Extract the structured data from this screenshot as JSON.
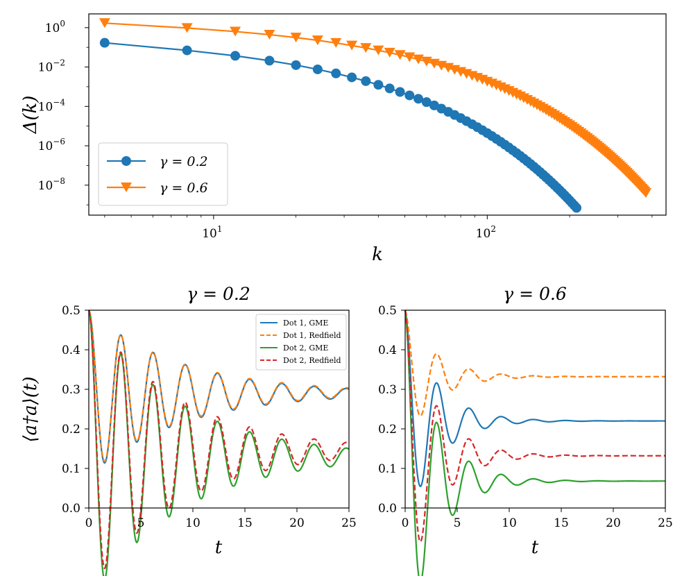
{
  "colors": {
    "blue": "#1f77b4",
    "orange": "#ff7f0e",
    "green": "#2ca02c",
    "red": "#d62728"
  },
  "chart_data": [
    {
      "type": "line",
      "id": "top",
      "xscale": "log",
      "yscale": "log",
      "xlim": [
        3.5,
        450
      ],
      "ylim": [
        3e-10,
        5
      ],
      "xlabel": "k",
      "ylabel": "Δ(k)",
      "xticks": [
        {
          "v": 10,
          "b": "10",
          "e": "1"
        },
        {
          "v": 100,
          "b": "10",
          "e": "2"
        }
      ],
      "yticks": [
        {
          "v": 1,
          "b": "10",
          "e": "0"
        },
        {
          "v": 0.01,
          "b": "10",
          "e": "−2"
        },
        {
          "v": 0.0001,
          "b": "10",
          "e": "−4"
        },
        {
          "v": 1e-06,
          "b": "10",
          "e": "−6"
        },
        {
          "v": 1e-08,
          "b": "10",
          "e": "−8"
        }
      ],
      "legend": "lower-left",
      "series": [
        {
          "name": "γ = 0.2",
          "color": "#1f77b4",
          "marker": "circle",
          "k_start": 4,
          "k_step": 4,
          "k_end": 212,
          "y_start": 0.17,
          "y_end": 7e-10,
          "decay_power": 2.2
        },
        {
          "name": "γ = 0.6",
          "color": "#ff7f0e",
          "marker": "triangle-down",
          "k_start": 4,
          "k_step": 4,
          "k_end": 380,
          "y_start": 1.7,
          "y_end": 4e-09,
          "decay_power": 2.2
        }
      ]
    },
    {
      "type": "line",
      "id": "bottom-left",
      "title": "γ = 0.2",
      "xlim": [
        0,
        25
      ],
      "ylim": [
        0.0,
        0.5
      ],
      "xlabel": "t",
      "ylabel": "⟨a†a⟩(t)",
      "xticks": [
        0,
        5,
        10,
        15,
        20,
        25
      ],
      "yticks": [
        "0.0",
        "0.1",
        "0.2",
        "0.3",
        "0.4",
        "0.5"
      ],
      "legend": "top-right",
      "omega": 2.03,
      "decay": 0.115,
      "series": [
        {
          "name": "Dot 1, GME",
          "color": "#1f77b4",
          "dash": "solid",
          "y0": 0.5,
          "steady": 0.29,
          "amp": 0.21
        },
        {
          "name": "Dot 1, Redfield",
          "color": "#ff7f0e",
          "dash": "dashed",
          "y0": 0.5,
          "steady": 0.292,
          "amp": 0.208
        },
        {
          "name": "Dot 2, GME",
          "color": "#2ca02c",
          "dash": "solid",
          "y0": 0.5,
          "steady": 0.13,
          "amp": 0.37
        },
        {
          "name": "Dot 2, Redfield",
          "color": "#d62728",
          "dash": "dashed",
          "y0": 0.5,
          "steady": 0.145,
          "amp": 0.355
        }
      ]
    },
    {
      "type": "line",
      "id": "bottom-right",
      "title": "γ = 0.6",
      "xlim": [
        0,
        25
      ],
      "ylim": [
        0.0,
        0.5
      ],
      "xlabel": "t",
      "ylabel": "",
      "xticks": [
        0,
        5,
        10,
        15,
        20,
        25
      ],
      "yticks": [
        "0.0",
        "0.1",
        "0.2",
        "0.3",
        "0.4",
        "0.5"
      ],
      "omega": 2.03,
      "decay": 0.35,
      "series": [
        {
          "name": "Dot 1, GME",
          "color": "#1f77b4",
          "dash": "solid",
          "y0": 0.5,
          "steady": 0.22,
          "amp": 0.28
        },
        {
          "name": "Dot 1, Redfield",
          "color": "#ff7f0e",
          "dash": "dashed",
          "y0": 0.5,
          "steady": 0.332,
          "amp": 0.168
        },
        {
          "name": "Dot 2, GME",
          "color": "#2ca02c",
          "dash": "solid",
          "y0": 0.5,
          "steady": 0.068,
          "amp": 0.432
        },
        {
          "name": "Dot 2, Redfield",
          "color": "#d62728",
          "dash": "dashed",
          "y0": 0.5,
          "steady": 0.132,
          "amp": 0.368
        }
      ]
    }
  ]
}
